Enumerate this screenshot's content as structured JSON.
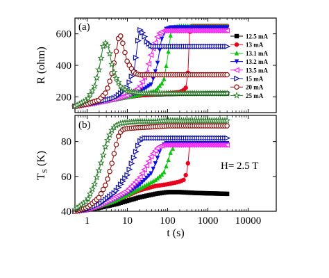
{
  "chart_data": [
    {
      "panel": "(a)",
      "type": "line",
      "xscale": "log",
      "xlim": [
        0.5,
        50000
      ],
      "ylim": [
        100,
        700
      ],
      "ylabel": "R (ohm)",
      "xlabel": "",
      "xticks": [
        1,
        10,
        100,
        1000,
        10000
      ],
      "yticks": [
        200,
        400,
        600
      ],
      "legend_position": "right",
      "series": [
        {
          "name": "12.5 mA",
          "color": "#000000",
          "marker": "square",
          "x": [
            0.5,
            1,
            2,
            5,
            10,
            20,
            50,
            100,
            200,
            500,
            1000,
            3000
          ],
          "y": [
            140,
            152,
            165,
            185,
            200,
            210,
            216,
            218,
            220,
            220,
            221,
            221
          ]
        },
        {
          "name": "13 mA",
          "color": "#e8001c",
          "marker": "circle",
          "x": [
            0.5,
            1,
            2,
            5,
            10,
            20,
            50,
            100,
            200,
            280,
            320,
            350,
            400,
            1000,
            3000
          ],
          "y": [
            140,
            152,
            165,
            185,
            200,
            210,
            218,
            222,
            230,
            250,
            350,
            600,
            650,
            650,
            650
          ]
        },
        {
          "name": "13.1 mA",
          "color": "#12c212",
          "marker": "triangle-up",
          "x": [
            0.5,
            1,
            2,
            5,
            10,
            20,
            50,
            80,
            100,
            120,
            150,
            200,
            500,
            1000,
            3000
          ],
          "y": [
            140,
            152,
            165,
            185,
            200,
            215,
            240,
            300,
            450,
            600,
            645,
            650,
            650,
            650,
            650
          ]
        },
        {
          "name": "13.2 mA",
          "color": "#1010e0",
          "marker": "triangle-down",
          "x": [
            0.5,
            1,
            2,
            5,
            10,
            20,
            40,
            55,
            70,
            90,
            120,
            300,
            1000,
            3000
          ],
          "y": [
            140,
            152,
            165,
            185,
            205,
            230,
            280,
            400,
            560,
            630,
            640,
            640,
            640,
            640
          ]
        },
        {
          "name": "13.5 mA",
          "color": "#ee22ee",
          "marker": "triangle-left",
          "x": [
            0.5,
            1,
            2,
            5,
            10,
            20,
            30,
            40,
            60,
            80,
            200,
            1000,
            3000
          ],
          "y": [
            140,
            152,
            166,
            188,
            210,
            260,
            350,
            480,
            600,
            620,
            620,
            620,
            620
          ]
        },
        {
          "name": "15 mA",
          "color": "#1010a0",
          "marker": "triangle-right",
          "x": [
            0.5,
            1,
            2,
            5,
            10,
            15,
            20,
            25,
            30,
            40,
            60,
            100,
            300,
            1000,
            3000
          ],
          "y": [
            140,
            152,
            168,
            195,
            260,
            380,
            630,
            600,
            550,
            520,
            520,
            520,
            520,
            520,
            520
          ]
        },
        {
          "name": "20 mA",
          "color": "#8a1010",
          "marker": "circle-open",
          "x": [
            0.5,
            1,
            2,
            3,
            4,
            5,
            6,
            7,
            8,
            10,
            15,
            20,
            50,
            100,
            1000,
            3000
          ],
          "y": [
            140,
            155,
            180,
            230,
            330,
            450,
            570,
            590,
            520,
            420,
            350,
            340,
            340,
            340,
            340,
            340
          ]
        },
        {
          "name": "25 mA",
          "color": "#2a7a2a",
          "marker": "star",
          "x": [
            0.5,
            1,
            1.5,
            2,
            2.5,
            3,
            3.5,
            4,
            5,
            7,
            10,
            20,
            50,
            100,
            1000,
            3000
          ],
          "y": [
            140,
            180,
            260,
            380,
            520,
            550,
            500,
            420,
            330,
            260,
            235,
            225,
            222,
            222,
            222,
            222
          ]
        }
      ]
    },
    {
      "panel": "(b)",
      "type": "line",
      "xscale": "log",
      "xlim": [
        0.5,
        50000
      ],
      "ylim": [
        40,
        95
      ],
      "ylabel": "T_S (K)",
      "xlabel": "t (s)",
      "xticks": [
        1,
        10,
        100,
        1000,
        10000
      ],
      "yticks": [
        40,
        60,
        80
      ],
      "annotation": "H= 2.5 T",
      "series": [
        {
          "name": "12.5 mA",
          "color": "#000000",
          "marker": "square",
          "x": [
            0.5,
            1,
            2,
            5,
            10,
            20,
            50,
            100,
            200,
            500,
            1000,
            3000
          ],
          "y": [
            40,
            40.8,
            42,
            44,
            46,
            48,
            50,
            51,
            51,
            50.5,
            50.3,
            50
          ]
        },
        {
          "name": "13 mA",
          "color": "#e8001c",
          "marker": "circle",
          "x": [
            0.5,
            1,
            2,
            5,
            10,
            20,
            50,
            100,
            200,
            250,
            300,
            330,
            350,
            400,
            1000,
            3000
          ],
          "y": [
            40,
            41,
            43,
            46,
            49,
            52,
            54.5,
            55.5,
            57,
            58,
            62,
            70,
            78,
            79,
            79,
            79
          ]
        },
        {
          "name": "13.1 mA",
          "color": "#12c212",
          "marker": "triangle-up",
          "x": [
            0.5,
            1,
            2,
            5,
            10,
            20,
            50,
            80,
            100,
            120,
            150,
            200,
            1000,
            3000
          ],
          "y": [
            40,
            41,
            43,
            46,
            49.5,
            53,
            58,
            62,
            68,
            74,
            78,
            79,
            79,
            79
          ]
        },
        {
          "name": "13.2 mA",
          "color": "#1010e0",
          "marker": "triangle-down",
          "x": [
            0.5,
            1,
            2,
            5,
            10,
            20,
            40,
            55,
            70,
            90,
            120,
            1000,
            3000
          ],
          "y": [
            40,
            41,
            43,
            47,
            50.5,
            55,
            62,
            70,
            77,
            79,
            79,
            79,
            79
          ]
        },
        {
          "name": "13.5 mA",
          "color": "#ee22ee",
          "marker": "triangle-left",
          "x": [
            0.5,
            1,
            2,
            5,
            10,
            20,
            30,
            40,
            60,
            80,
            1000,
            3000
          ],
          "y": [
            40,
            41,
            43.5,
            48,
            52,
            59,
            66,
            72,
            77,
            78,
            78,
            78
          ]
        },
        {
          "name": "15 mA",
          "color": "#1010a0",
          "marker": "triangle-right",
          "x": [
            0.5,
            1,
            2,
            5,
            10,
            15,
            20,
            25,
            30,
            40,
            100,
            1000,
            3000
          ],
          "y": [
            40,
            41,
            44,
            51,
            61,
            72,
            80,
            82,
            82,
            82,
            82,
            82,
            82
          ]
        },
        {
          "name": "20 mA",
          "color": "#8a1010",
          "marker": "circle-open",
          "x": [
            0.5,
            1,
            2,
            3,
            4,
            5,
            6,
            7,
            8,
            10,
            20,
            50,
            100,
            1000,
            3000
          ],
          "y": [
            40,
            42,
            48,
            56,
            66,
            76,
            83,
            86,
            87,
            87.5,
            88,
            88.5,
            89,
            89,
            89
          ]
        },
        {
          "name": "25 mA",
          "color": "#2a7a2a",
          "marker": "star",
          "x": [
            0.5,
            1,
            1.5,
            2,
            2.5,
            3,
            4,
            5,
            7,
            10,
            20,
            50,
            100,
            1000,
            3000
          ],
          "y": [
            41,
            46,
            55,
            64,
            72,
            79,
            86,
            89,
            90.5,
            91,
            91.5,
            91.5,
            92,
            92,
            92
          ]
        }
      ]
    }
  ],
  "legend": {
    "entries": [
      "12.5 mA",
      "13 mA",
      "13.1 mA",
      "13.2 mA",
      "13.5 mA",
      "15 mA",
      "20 mA",
      "25 mA"
    ]
  }
}
